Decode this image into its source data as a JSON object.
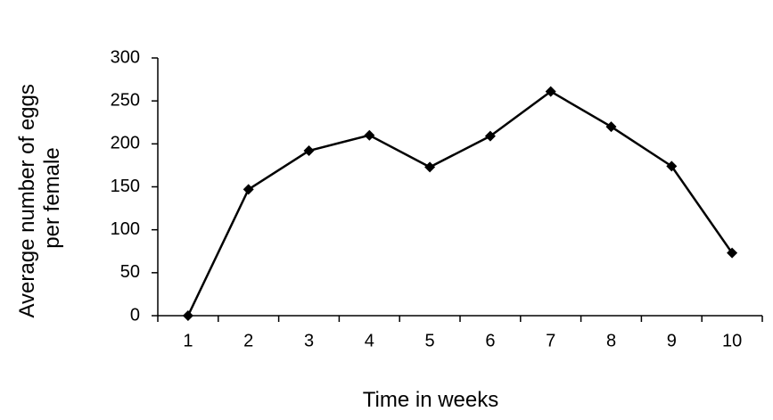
{
  "chart_data": {
    "type": "line",
    "title": "",
    "xlabel": "Time in weeks",
    "ylabel_lines": [
      "Average number of eggs",
      "per female"
    ],
    "categories": [
      "1",
      "2",
      "3",
      "4",
      "5",
      "6",
      "7",
      "8",
      "9",
      "10"
    ],
    "values": [
      0,
      147,
      192,
      210,
      173,
      209,
      261,
      220,
      174,
      73
    ],
    "ylim": [
      0,
      300
    ],
    "yticks": [
      0,
      50,
      100,
      150,
      200,
      250,
      300
    ],
    "grid": false,
    "legend": "none",
    "marker": "diamond",
    "colors": {
      "line": "#000000",
      "marker": "#000000",
      "axis": "#000000"
    }
  }
}
